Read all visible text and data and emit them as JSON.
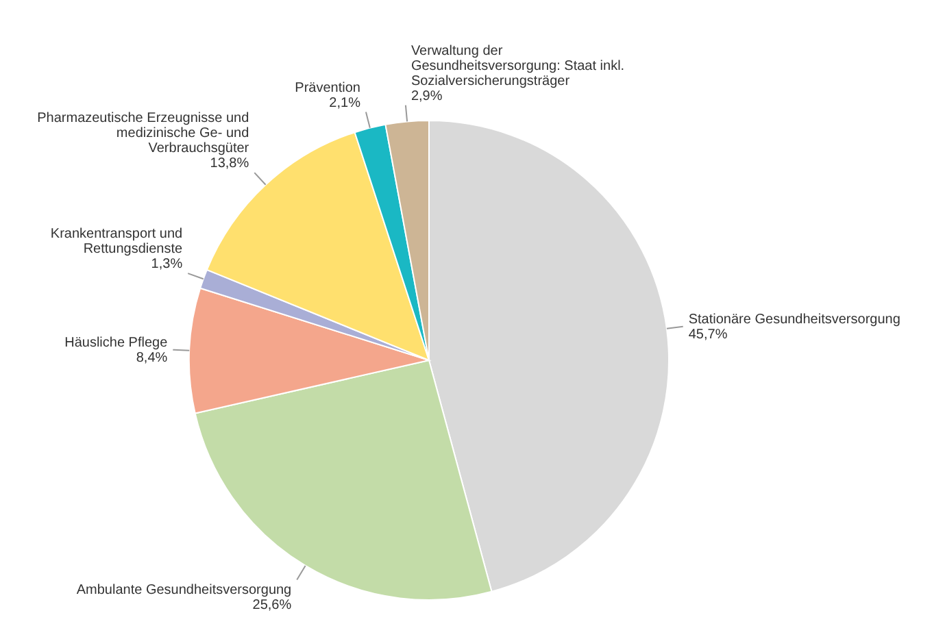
{
  "chart_data": {
    "type": "pie",
    "categories": [
      "Stationäre Gesundheitsversorgung",
      "Ambulante Gesundheitsversorgung",
      "Häusliche Pflege",
      "Krankentransport und Rettungsdienste",
      "Pharmazeutische Erzeugnisse und medizinische Ge- und Verbrauchsgüter",
      "Prävention",
      "Verwaltung der Gesundheitsversorgung: Staat inkl. Sozialversicherungsträger"
    ],
    "values": [
      45.7,
      25.6,
      8.4,
      1.3,
      13.8,
      2.1,
      2.9
    ],
    "colors": [
      "#d9d9d9",
      "#c3dca8",
      "#f4a68c",
      "#a9aed6",
      "#ffe06e",
      "#1ab8c4",
      "#cdb595"
    ],
    "value_labels": [
      "45,7%",
      "25,6%",
      "8,4%",
      "1,3%",
      "13,8%",
      "2,1%",
      "2,9%"
    ]
  }
}
